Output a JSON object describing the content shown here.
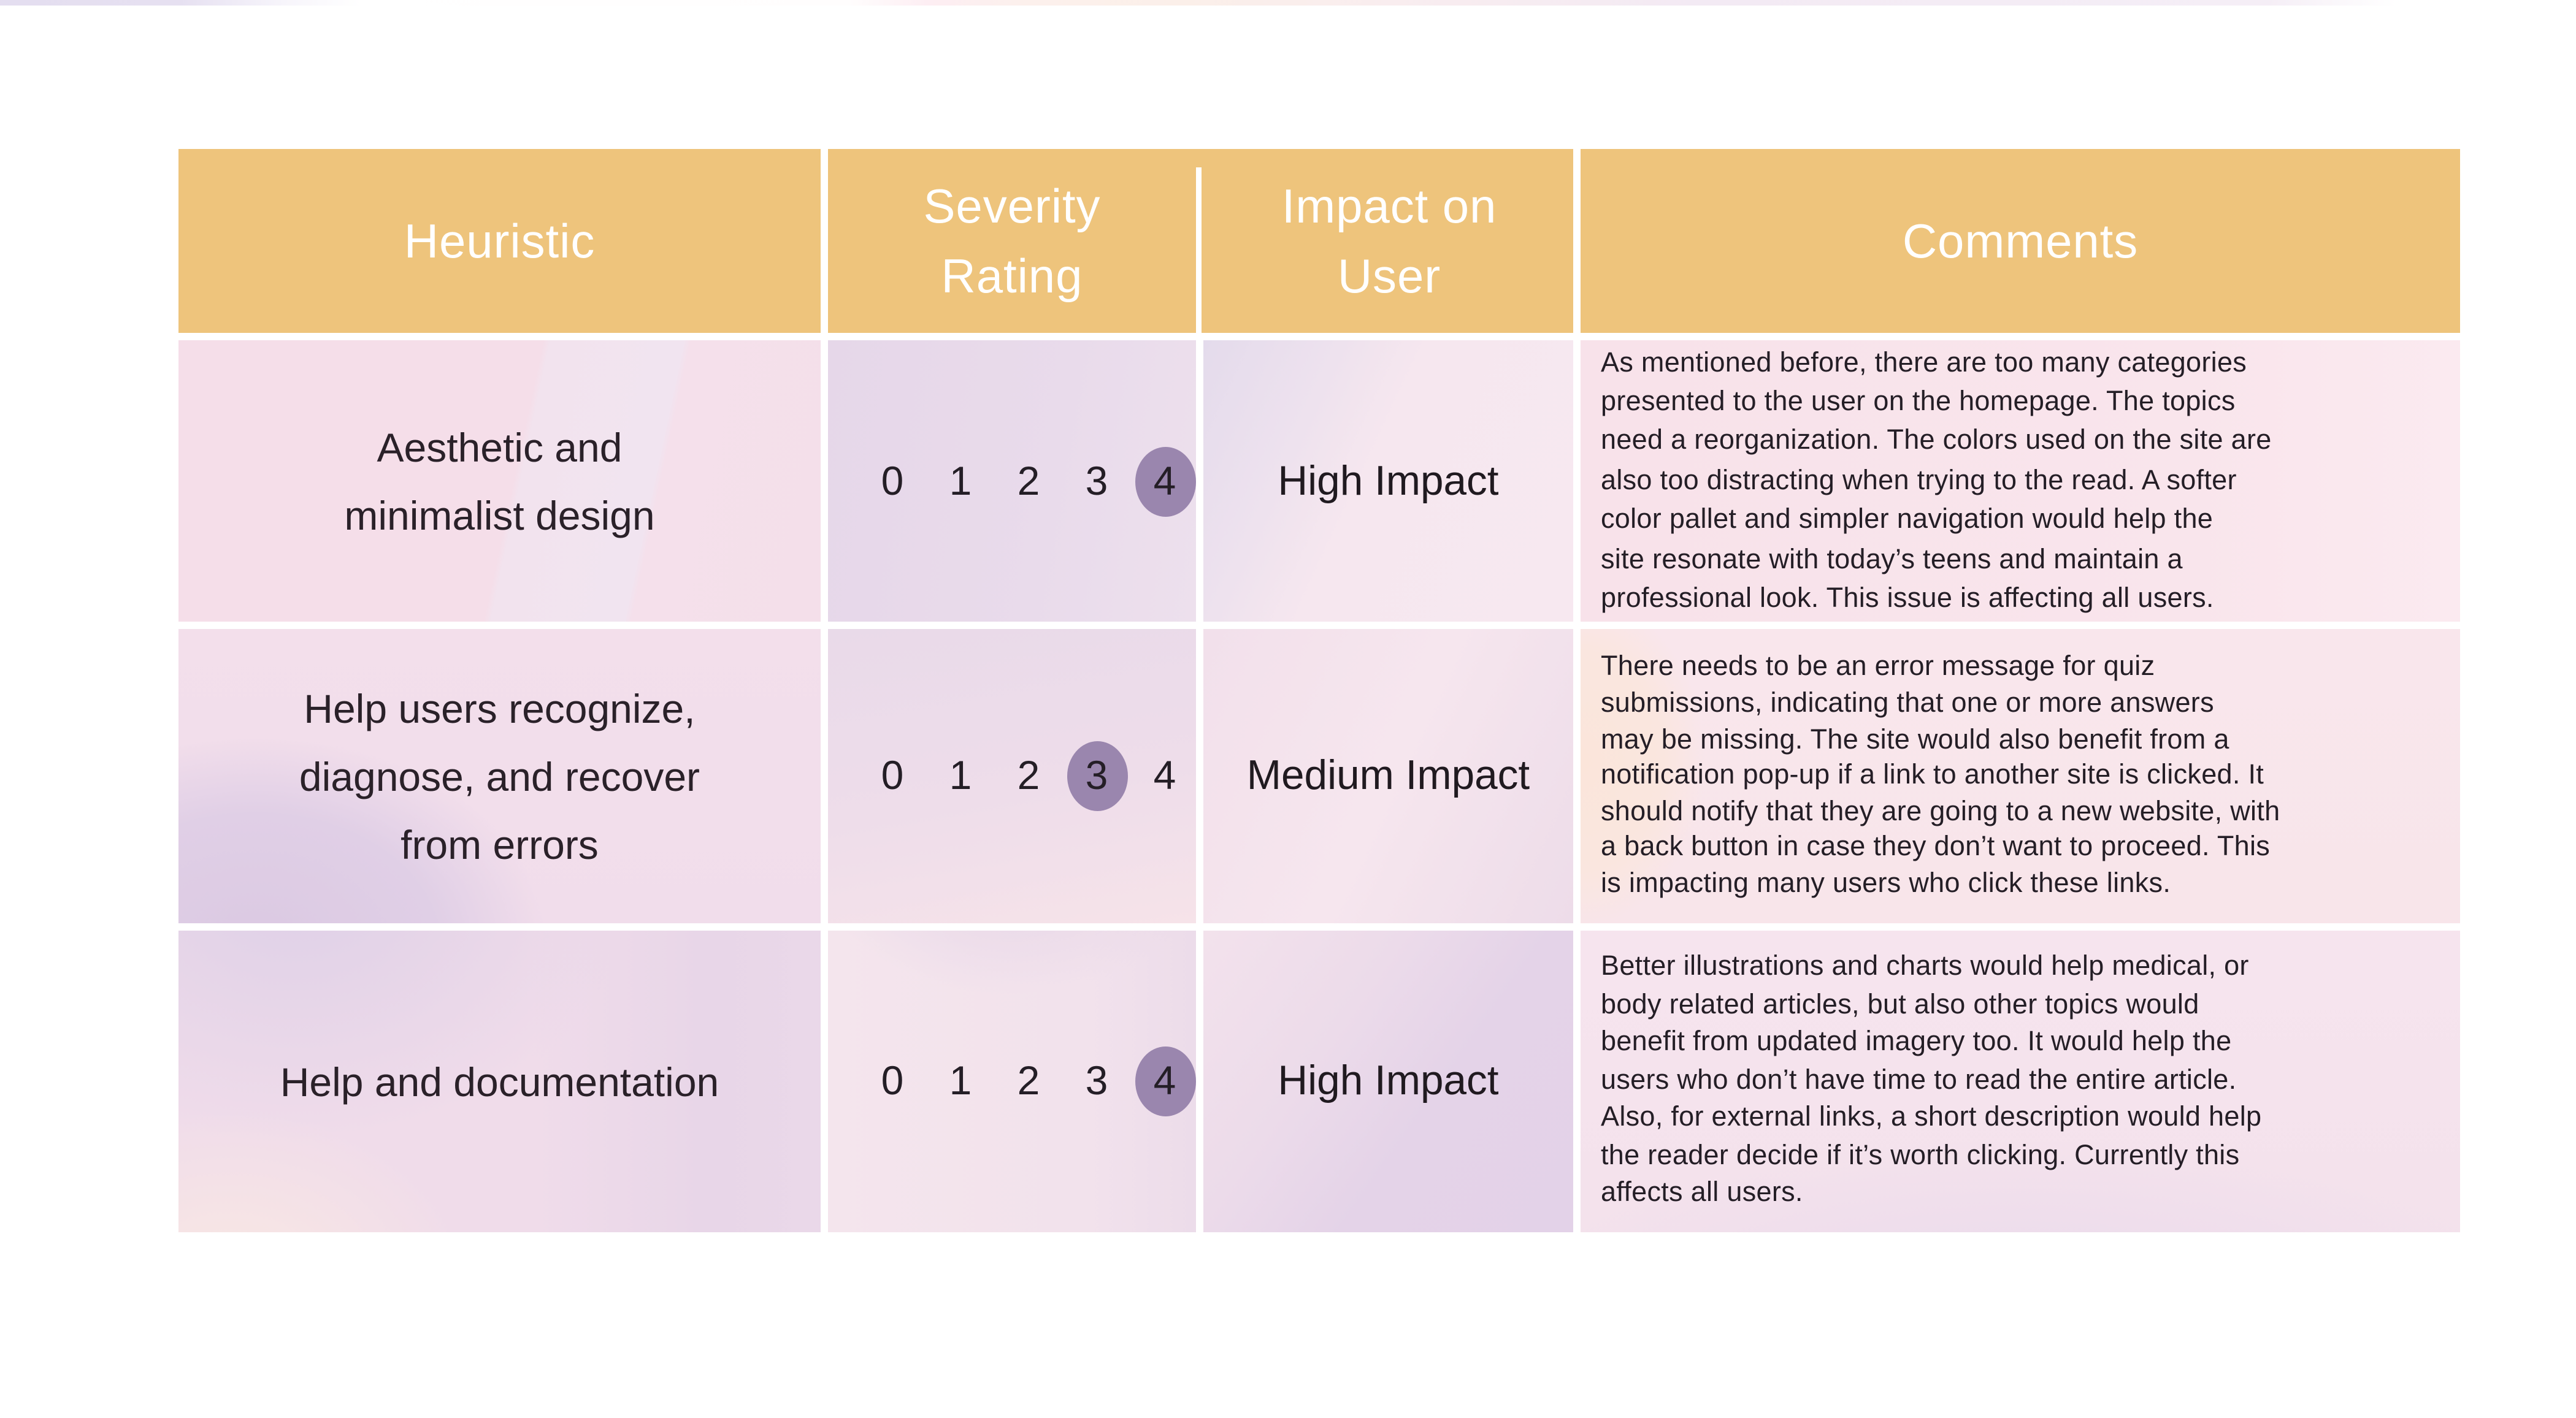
{
  "page": {
    "background": "#ffffff",
    "header_bg": "#eec47c",
    "header_text_color": "#ffffff",
    "selected_circle_color": "#9a86ae",
    "body_text_color": "#241e26"
  },
  "table": {
    "columns": [
      "Heuristic",
      "Severity\nRating",
      "Impact on\nUser",
      "Comments"
    ],
    "severity_scale": [
      "0",
      "1",
      "2",
      "3",
      "4"
    ],
    "rows": [
      {
        "heuristic": "Aesthetic and\nminimalist design",
        "severity_selected": 4,
        "impact": "High Impact",
        "comments": "As mentioned before, there are too many categories\npresented to the user on the homepage. The topics\nneed a reorganization. The colors used on the site are\nalso too distracting when trying to the read. A softer\ncolor pallet and simpler navigation would help the\nsite resonate with today’s teens and maintain a\nprofessional look. This issue is affecting all users."
      },
      {
        "heuristic": "Help users recognize,\ndiagnose, and recover\nfrom errors",
        "severity_selected": 3,
        "impact": "Medium Impact",
        "comments": "There needs to be an error message for quiz\nsubmissions, indicating that one or more answers\nmay be missing. The site would also benefit from a\nnotification pop-up if a link to another site is clicked. It\nshould notify that they are going to a new website, with\na back button in case they don’t want to proceed. This\nis impacting many users who click these links."
      },
      {
        "heuristic": "Help and documentation",
        "severity_selected": 4,
        "impact": "High Impact",
        "comments": "Better illustrations and charts would help medical, or\nbody related articles, but also other topics would\nbenefit from updated imagery too. It would help the\nusers who don’t have time to read the entire article.\nAlso, for external links, a short description would help\nthe reader decide if it’s worth clicking. Currently this\naffects all users."
      }
    ]
  }
}
